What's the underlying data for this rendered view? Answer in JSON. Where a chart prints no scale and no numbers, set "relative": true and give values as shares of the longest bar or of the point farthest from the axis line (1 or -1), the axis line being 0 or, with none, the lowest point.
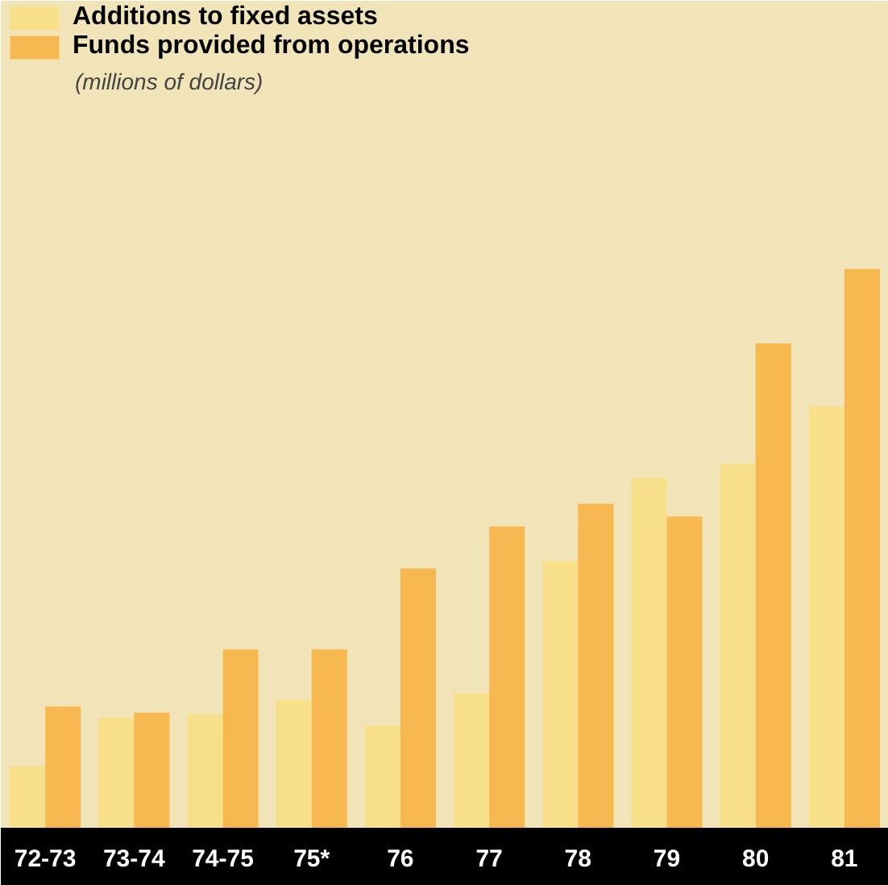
{
  "chart_data": {
    "type": "bar",
    "relative": true,
    "categories": [
      "72-73",
      "73-74",
      "74-75",
      "75*",
      "76",
      "77",
      "78",
      "79",
      "80",
      "81"
    ],
    "series": [
      {
        "name": "Additions to fixed assets",
        "color": "#f8e08a",
        "values": [
          0.11,
          0.197,
          0.203,
          0.229,
          0.183,
          0.241,
          0.478,
          0.626,
          0.652,
          0.754
        ]
      },
      {
        "name": "Funds provided from operations",
        "color": "#f8b850",
        "values": [
          0.217,
          0.206,
          0.319,
          0.319,
          0.464,
          0.539,
          0.58,
          0.557,
          0.867,
          1
        ]
      }
    ],
    "annotations": [
      "(millions of dollars)"
    ],
    "legend": "top left"
  }
}
